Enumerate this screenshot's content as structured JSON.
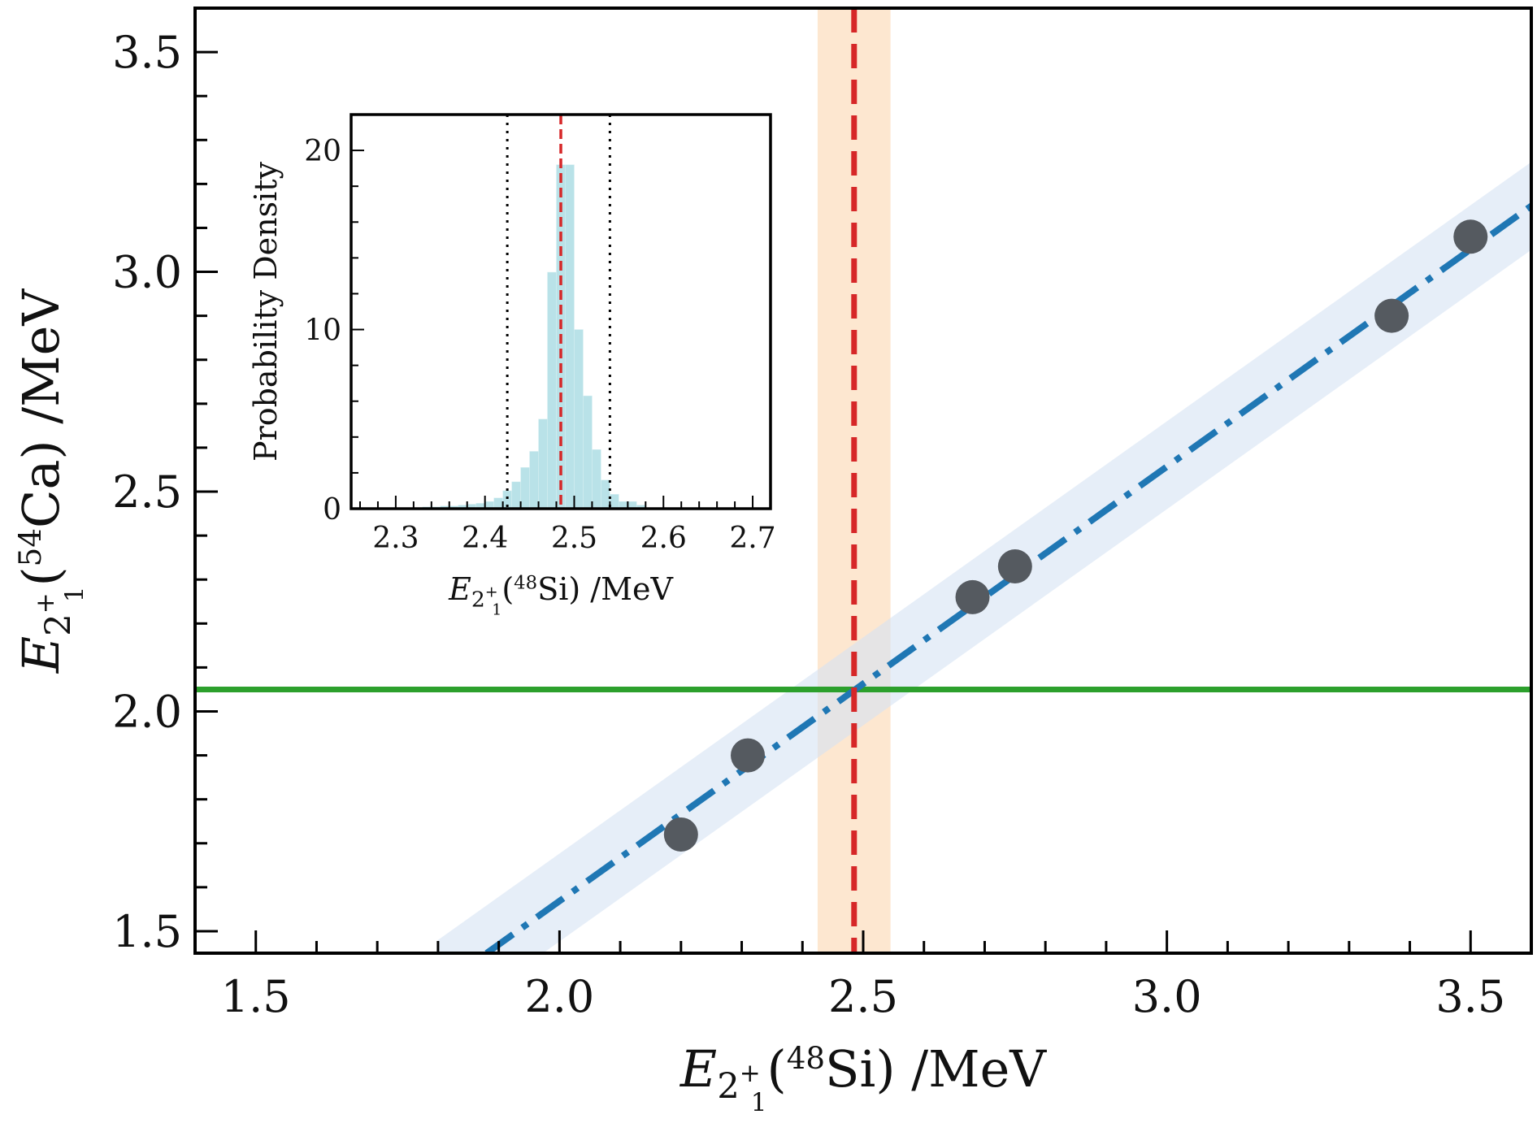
{
  "chart_data": {
    "type": "scatter",
    "main": {
      "xlabel": {
        "symbol": "E",
        "subscript": "2",
        "sub_sup": "+",
        "sub_sub": "1",
        "nucleus_mass": "48",
        "nucleus": "Si",
        "unit": "/MeV"
      },
      "ylabel": {
        "symbol": "E",
        "subscript": "2",
        "sub_sup": "+",
        "sub_sub": "1",
        "nucleus_mass": "54",
        "nucleus": "Ca",
        "unit": "/MeV"
      },
      "xlim": [
        1.4,
        3.6
      ],
      "ylim": [
        1.45,
        3.6
      ],
      "xticks": [
        "1.5",
        "2.0",
        "2.5",
        "3.0",
        "3.5"
      ],
      "yticks": [
        "1.5",
        "2.0",
        "2.5",
        "3.0",
        "3.5"
      ],
      "points": [
        {
          "x": 2.2,
          "y": 1.72
        },
        {
          "x": 2.31,
          "y": 1.9
        },
        {
          "x": 2.68,
          "y": 2.26
        },
        {
          "x": 2.75,
          "y": 2.33
        },
        {
          "x": 3.37,
          "y": 2.9
        },
        {
          "x": 3.5,
          "y": 3.08
        }
      ],
      "fit_line": {
        "x": [
          1.88,
          3.6
        ],
        "y": [
          1.45,
          3.15
        ],
        "color": "#1f77b4",
        "style": "dash-dot"
      },
      "fit_band": {
        "x": [
          1.8,
          3.6
        ],
        "lower": [
          1.28,
          3.05
        ],
        "upper": [
          1.48,
          3.25
        ],
        "color": "#d6e2f3"
      },
      "horizontal_line": {
        "y": 2.05,
        "color": "#2ca02c"
      },
      "vertical_line": {
        "x": 2.485,
        "color": "#d62728",
        "style": "dashed"
      },
      "vertical_band": {
        "x": [
          2.425,
          2.545
        ],
        "color": "#fde3c8"
      },
      "point_color": "#555a60"
    },
    "inset": {
      "type": "histogram",
      "xlabel": {
        "symbol": "E",
        "subscript": "2",
        "sub_sup": "+",
        "sub_sub": "1",
        "nucleus_mass": "48",
        "nucleus": "Si",
        "unit": "/MeV"
      },
      "ylabel": "Probability Density",
      "xlim": [
        2.25,
        2.72
      ],
      "ylim": [
        0,
        22
      ],
      "xticks": [
        "2.3",
        "2.4",
        "2.5",
        "2.6",
        "2.7"
      ],
      "yticks": [
        "0",
        "10",
        "20"
      ],
      "bin_width": 0.01,
      "bins": [
        {
          "x": 2.31,
          "y": 0.05
        },
        {
          "x": 2.32,
          "y": 0.05
        },
        {
          "x": 2.33,
          "y": 0.1
        },
        {
          "x": 2.34,
          "y": 0.1
        },
        {
          "x": 2.35,
          "y": 0.15
        },
        {
          "x": 2.36,
          "y": 0.15
        },
        {
          "x": 2.37,
          "y": 0.2
        },
        {
          "x": 2.38,
          "y": 0.25
        },
        {
          "x": 2.39,
          "y": 0.3
        },
        {
          "x": 2.4,
          "y": 0.4
        },
        {
          "x": 2.41,
          "y": 0.6
        },
        {
          "x": 2.42,
          "y": 1.0
        },
        {
          "x": 2.43,
          "y": 1.5
        },
        {
          "x": 2.44,
          "y": 2.3
        },
        {
          "x": 2.45,
          "y": 3.2
        },
        {
          "x": 2.46,
          "y": 5.0
        },
        {
          "x": 2.47,
          "y": 13.2
        },
        {
          "x": 2.48,
          "y": 19.2
        },
        {
          "x": 2.49,
          "y": 19.2
        },
        {
          "x": 2.5,
          "y": 10.0
        },
        {
          "x": 2.51,
          "y": 6.3
        },
        {
          "x": 2.52,
          "y": 3.3
        },
        {
          "x": 2.53,
          "y": 1.6
        },
        {
          "x": 2.54,
          "y": 0.8
        },
        {
          "x": 2.55,
          "y": 0.4
        },
        {
          "x": 2.56,
          "y": 0.4
        },
        {
          "x": 2.57,
          "y": 0.2
        }
      ],
      "bar_color": "#b9e2e8",
      "median_line": {
        "x": 2.485,
        "color": "#d62728"
      },
      "interval_lines": [
        2.425,
        2.54
      ]
    }
  }
}
